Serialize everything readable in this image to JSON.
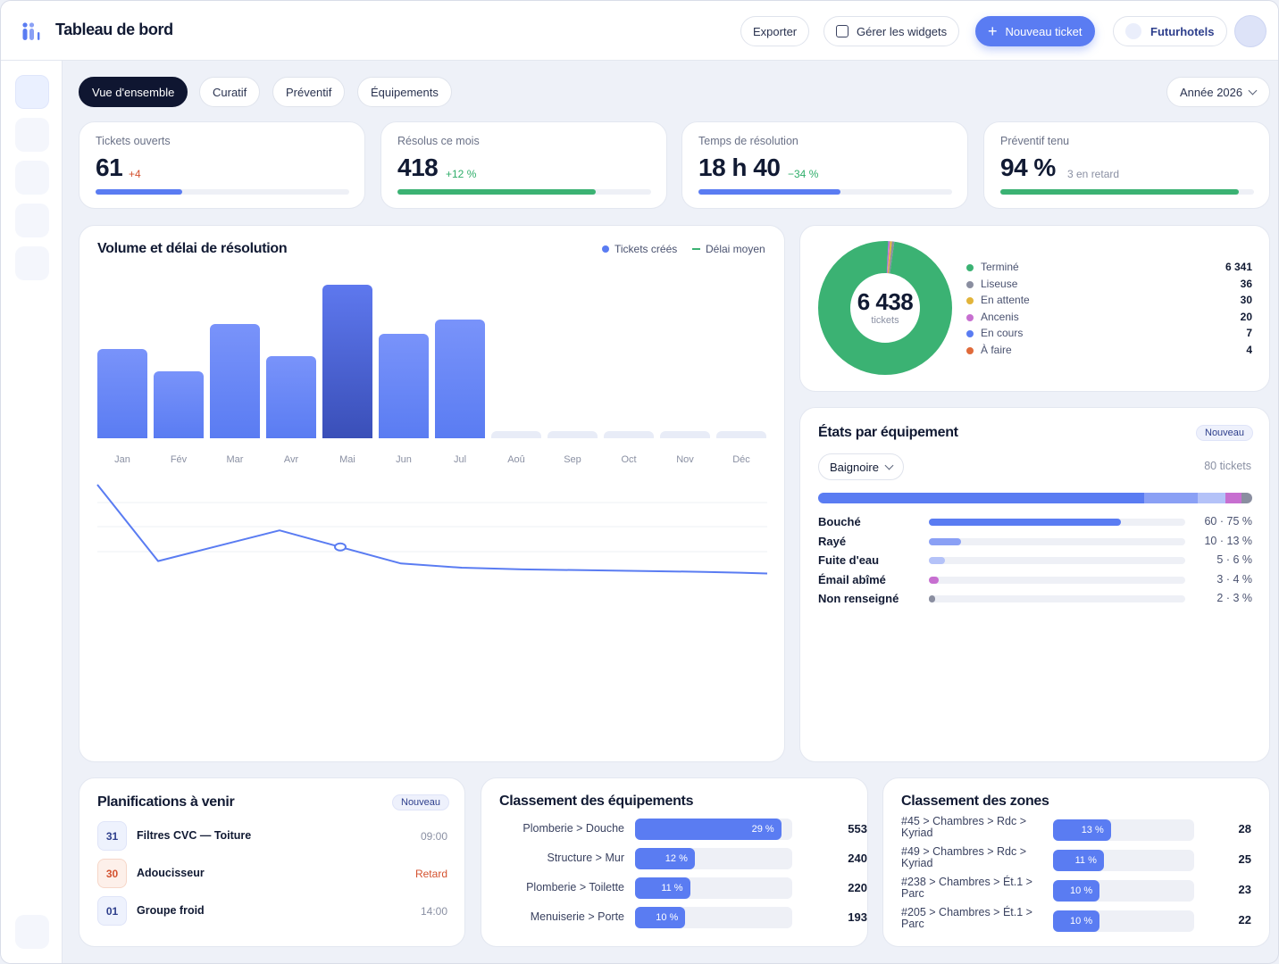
{
  "header": {
    "title": "Tableau de bord",
    "export_label": "Exporter",
    "widgets_label": "Gérer les widgets",
    "new_ticket_label": "Nouveau ticket",
    "org_label": "Futurhotels"
  },
  "tabs": [
    {
      "label": "Vue d'ensemble",
      "active": true
    },
    {
      "label": "Curatif",
      "active": false
    },
    {
      "label": "Préventif",
      "active": false
    },
    {
      "label": "Équipements",
      "active": false
    }
  ],
  "year_select": "Année 2026",
  "kpis": [
    {
      "label": "Tickets ouverts",
      "value": "61",
      "delta": "+4",
      "delta_color": "#d4522f",
      "progress": 0.34,
      "bar_color": "#5a7cf2"
    },
    {
      "label": "Résolus ce mois",
      "value": "418",
      "delta": "+12 %",
      "delta_color": "#2fae6a",
      "progress": 0.78,
      "bar_color": "#3bb273"
    },
    {
      "label": "Temps de résolution",
      "value": "18 h 40",
      "delta": "−34 %",
      "delta_color": "#2fae6a",
      "progress": 0.56,
      "bar_color": "#5a7cf2"
    },
    {
      "label": "Préventif tenu",
      "value": "94 %",
      "delta": "3 en retard",
      "delta_color": "#8a90a3",
      "progress": 0.94,
      "bar_color": "#3bb273"
    }
  ],
  "volume_chart": {
    "title": "Volume et délai de résolution",
    "legend_bars": "Tickets créés",
    "legend_line": "Délai moyen",
    "colors": {
      "bars": "#6f8df7",
      "highlight": "#3a4fb8",
      "line": "#5a7cf2",
      "empty": "#e8ecf7"
    }
  },
  "chart_data": {
    "type": "bar",
    "categories": [
      "Jan",
      "Fév",
      "Mar",
      "Avr",
      "Mai",
      "Jun",
      "Jul",
      "Aoû",
      "Sep",
      "Oct",
      "Nov",
      "Déc"
    ],
    "series": [
      {
        "name": "Tickets créés",
        "values": [
          100,
          75,
          128,
          92,
          172,
          117,
          133,
          null,
          null,
          null,
          null,
          null
        ]
      },
      {
        "name": "Délai moyen",
        "values": [
          100,
          8,
          45,
          25,
          5,
          0,
          -2,
          -3,
          -4,
          -5,
          -6,
          -7
        ]
      }
    ],
    "highlight_index": 4,
    "marker_index": 3
  },
  "donut": {
    "total": "6 438",
    "total_label": "tickets",
    "items": [
      {
        "label": "Terminé",
        "value": "6 341",
        "count": 6341,
        "color": "#3bb273"
      },
      {
        "label": "Liseuse",
        "value": "36",
        "count": 36,
        "color": "#8a8ea0"
      },
      {
        "label": "En attente",
        "value": "30",
        "count": 30,
        "color": "#e2b43a"
      },
      {
        "label": "Ancenis",
        "value": "20",
        "count": 20,
        "color": "#c76fd0"
      },
      {
        "label": "En cours",
        "value": "7",
        "count": 7,
        "color": "#5a7cf2"
      },
      {
        "label": "À faire",
        "value": "4",
        "count": 4,
        "color": "#e06a3a"
      }
    ]
  },
  "equipment_states": {
    "title": "États par équipement",
    "badge": "Nouveau",
    "selected": "Baignoire",
    "count": "80 tickets",
    "stack": [
      {
        "share": 0.75,
        "color": "#5a7cf2"
      },
      {
        "share": 0.125,
        "color": "#8aa0f5"
      },
      {
        "share": 0.0625,
        "color": "#b4c2f8"
      },
      {
        "share": 0.0375,
        "color": "#c76fd0"
      },
      {
        "share": 0.025,
        "color": "#8a8ea0"
      }
    ],
    "rows": [
      {
        "label": "Bouché",
        "value": "60 · 75 %",
        "share": 0.75,
        "color": "#5a7cf2"
      },
      {
        "label": "Rayé",
        "value": "10 · 13 %",
        "share": 0.125,
        "color": "#8aa0f5"
      },
      {
        "label": "Fuite d'eau",
        "value": "5 · 6 %",
        "share": 0.0625,
        "color": "#b4c2f8"
      },
      {
        "label": "Émail abîmé",
        "value": "3 · 4 %",
        "share": 0.0375,
        "color": "#c76fd0"
      },
      {
        "label": "Non renseigné",
        "value": "2 · 3 %",
        "share": 0.025,
        "color": "#8a8ea0"
      }
    ]
  },
  "planning": {
    "title": "Planifications à venir",
    "badge": "Nouveau",
    "items": [
      {
        "day": "31",
        "name": "Filtres CVC — Toiture",
        "time": "09:00",
        "late": false
      },
      {
        "day": "30",
        "name": "Adoucisseur",
        "time": "Retard",
        "late": true
      },
      {
        "day": "01",
        "name": "Groupe froid",
        "time": "14:00",
        "late": false
      }
    ]
  },
  "equipment_ranking": {
    "title": "Classement des équipements",
    "rows": [
      {
        "label": "Plomberie > Douche",
        "percent": "29 %",
        "share": 0.93,
        "count": "553"
      },
      {
        "label": "Structure > Mur",
        "percent": "12 %",
        "share": 0.38,
        "count": "240"
      },
      {
        "label": "Plomberie > Toilette",
        "percent": "11 %",
        "share": 0.35,
        "count": "220"
      },
      {
        "label": "Menuiserie > Porte",
        "percent": "10 %",
        "share": 0.32,
        "count": "193"
      }
    ]
  },
  "zone_ranking": {
    "title": "Classement des zones",
    "rows": [
      {
        "label": "#45 > Chambres > Rdc > Kyriad",
        "percent": "13 %",
        "share": 0.41,
        "count": "28"
      },
      {
        "label": "#49 > Chambres > Rdc > Kyriad",
        "percent": "11 %",
        "share": 0.36,
        "count": "25"
      },
      {
        "label": "#238 > Chambres > Ét.1 > Parc",
        "percent": "10 %",
        "share": 0.33,
        "count": "23"
      },
      {
        "label": "#205 > Chambres > Ét.1 > Parc",
        "percent": "10 %",
        "share": 0.33,
        "count": "22"
      }
    ]
  }
}
